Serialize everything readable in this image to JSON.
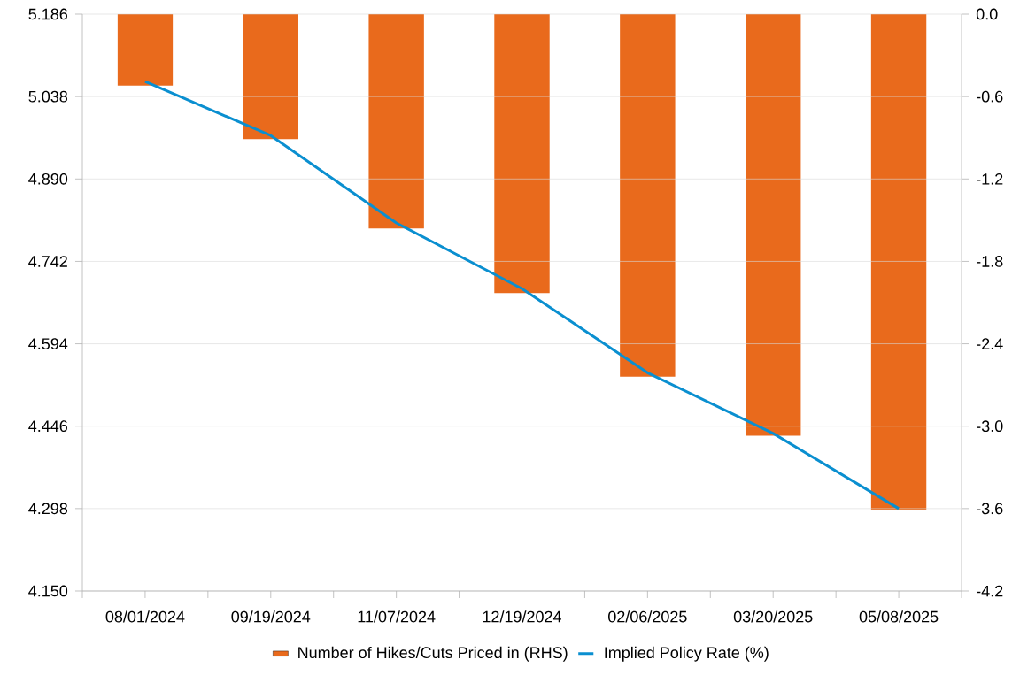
{
  "chart_data": {
    "type": "bar",
    "categories": [
      "08/01/2024",
      "09/19/2024",
      "11/07/2024",
      "12/19/2024",
      "02/06/2025",
      "03/20/2025",
      "05/08/2025"
    ],
    "series": [
      {
        "name": "Number of Hikes/Cuts Priced in (RHS)",
        "axis": "y2",
        "color": "#e96a1c",
        "values": [
          -0.52,
          -0.91,
          -1.56,
          -2.03,
          -2.64,
          -3.07,
          -3.61
        ]
      },
      {
        "name": "Implied Policy Rate (%)",
        "type": "line",
        "color": "#0a8fd0",
        "values": [
          5.065,
          4.968,
          4.811,
          4.693,
          4.542,
          4.433,
          4.298
        ]
      }
    ],
    "ylim": [
      4.15,
      5.186
    ],
    "yticks": [
      {
        "value": 4.15,
        "label": "4.150"
      },
      4.298,
      4.446,
      4.594,
      4.742,
      {
        "value": 4.89,
        "label": "4.890"
      },
      5.038,
      5.186
    ],
    "y2lim": [
      -4.2,
      0
    ],
    "y2ticks": [
      {
        "value": -4.2,
        "label": "-4.2"
      },
      -3.6,
      {
        "value": -3.0,
        "label": "-3.0"
      },
      -2.4,
      -1.8,
      -1.2,
      -0.6,
      {
        "value": 0,
        "label": "0.0"
      }
    ],
    "grid": "y",
    "legend": "bottom"
  }
}
